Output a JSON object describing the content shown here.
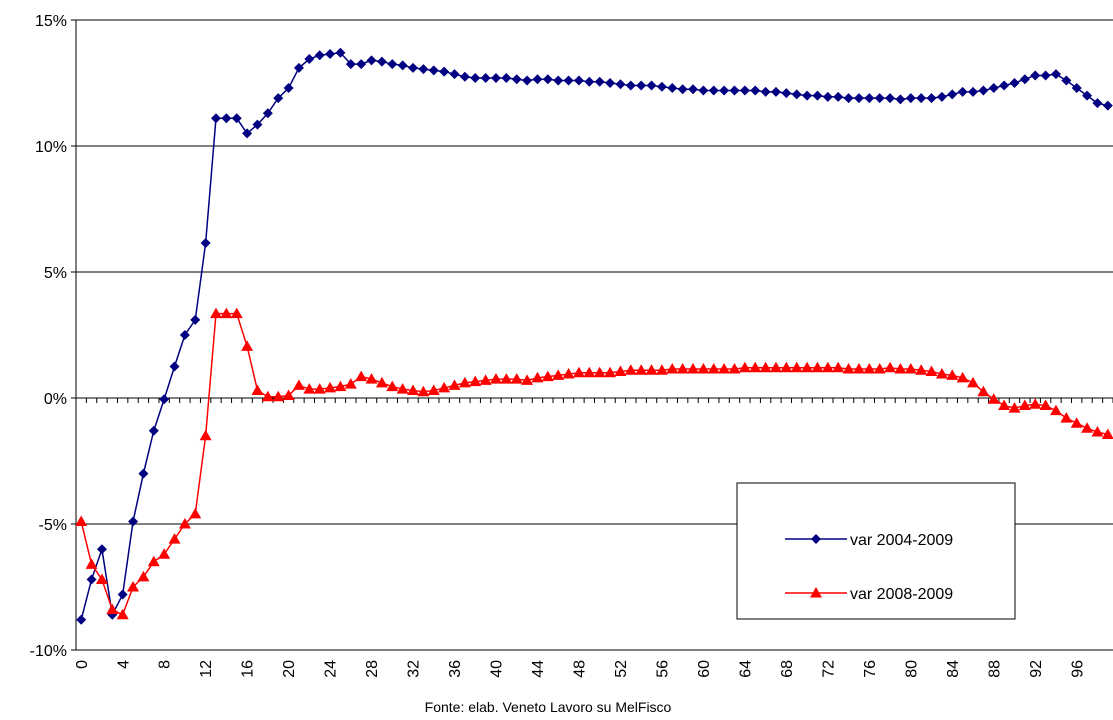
{
  "chart_data": {
    "type": "line",
    "source_note": "Fonte: elab. Veneto Lavoro su MelFisco",
    "ylim": [
      -10,
      15
    ],
    "y_ticks": [
      -10,
      -5,
      0,
      5,
      10,
      15
    ],
    "y_tick_labels": [
      "-10%",
      "-5%",
      "0%",
      "5%",
      "10%",
      "15%"
    ],
    "xlim": [
      0,
      99
    ],
    "x_ticks": [
      0,
      4,
      8,
      12,
      16,
      20,
      24,
      28,
      32,
      36,
      40,
      44,
      48,
      52,
      56,
      60,
      64,
      68,
      72,
      76,
      80,
      84,
      88,
      92,
      96
    ],
    "x_tick_labels": [
      "0",
      "4",
      "8",
      "12",
      "16",
      "20",
      "24",
      "28",
      "32",
      "36",
      "40",
      "44",
      "48",
      "52",
      "56",
      "60",
      "64",
      "68",
      "72",
      "76",
      "80",
      "84",
      "88",
      "92",
      "96"
    ],
    "grid": "horizontal",
    "legend_position": "lower-right",
    "x": [
      0,
      1,
      2,
      3,
      4,
      5,
      6,
      7,
      8,
      9,
      10,
      11,
      12,
      13,
      14,
      15,
      16,
      17,
      18,
      19,
      20,
      21,
      22,
      23,
      24,
      25,
      26,
      27,
      28,
      29,
      30,
      31,
      32,
      33,
      34,
      35,
      36,
      37,
      38,
      39,
      40,
      41,
      42,
      43,
      44,
      45,
      46,
      47,
      48,
      49,
      50,
      51,
      52,
      53,
      54,
      55,
      56,
      57,
      58,
      59,
      60,
      61,
      62,
      63,
      64,
      65,
      66,
      67,
      68,
      69,
      70,
      71,
      72,
      73,
      74,
      75,
      76,
      77,
      78,
      79,
      80,
      81,
      82,
      83,
      84,
      85,
      86,
      87,
      88,
      89,
      90,
      91,
      92,
      93,
      94,
      95,
      96,
      97,
      98,
      99
    ],
    "series": [
      {
        "name": "var 2004-2009",
        "color": "#000080",
        "marker": "diamond",
        "values": [
          -8.8,
          -7.2,
          -6.0,
          -8.6,
          -7.8,
          -4.9,
          -3.0,
          -1.3,
          -0.05,
          1.25,
          2.5,
          3.1,
          6.15,
          11.1,
          11.1,
          11.1,
          10.5,
          10.85,
          11.3,
          11.9,
          12.3,
          13.1,
          13.45,
          13.6,
          13.65,
          13.7,
          13.25,
          13.25,
          13.4,
          13.35,
          13.25,
          13.2,
          13.1,
          13.05,
          13.0,
          12.95,
          12.85,
          12.75,
          12.7,
          12.7,
          12.7,
          12.7,
          12.65,
          12.6,
          12.65,
          12.65,
          12.6,
          12.6,
          12.6,
          12.55,
          12.55,
          12.5,
          12.45,
          12.4,
          12.4,
          12.4,
          12.35,
          12.3,
          12.25,
          12.25,
          12.2,
          12.2,
          12.2,
          12.2,
          12.2,
          12.2,
          12.15,
          12.15,
          12.1,
          12.05,
          12.0,
          12.0,
          11.95,
          11.95,
          11.9,
          11.9,
          11.9,
          11.9,
          11.9,
          11.85,
          11.9,
          11.9,
          11.9,
          11.95,
          12.05,
          12.15,
          12.15,
          12.2,
          12.3,
          12.4,
          12.5,
          12.65,
          12.8,
          12.8,
          12.85,
          12.6,
          12.3,
          12.0,
          11.7,
          11.6
        ]
      },
      {
        "name": "var 2008-2009",
        "color": "#ff0000",
        "marker": "triangle",
        "values": [
          -4.9,
          -6.6,
          -7.2,
          -8.4,
          -8.6,
          -7.5,
          -7.1,
          -6.5,
          -6.2,
          -5.6,
          -5.0,
          -4.6,
          -1.5,
          3.35,
          3.35,
          3.35,
          2.05,
          0.3,
          0.05,
          0.05,
          0.1,
          0.5,
          0.35,
          0.35,
          0.4,
          0.45,
          0.55,
          0.85,
          0.75,
          0.6,
          0.45,
          0.35,
          0.3,
          0.25,
          0.3,
          0.4,
          0.5,
          0.6,
          0.65,
          0.7,
          0.75,
          0.75,
          0.75,
          0.7,
          0.8,
          0.85,
          0.9,
          0.95,
          1.0,
          1.0,
          1.0,
          1.0,
          1.05,
          1.1,
          1.1,
          1.1,
          1.1,
          1.15,
          1.15,
          1.15,
          1.15,
          1.15,
          1.15,
          1.15,
          1.2,
          1.2,
          1.2,
          1.2,
          1.2,
          1.2,
          1.2,
          1.2,
          1.2,
          1.2,
          1.15,
          1.15,
          1.15,
          1.15,
          1.2,
          1.15,
          1.15,
          1.1,
          1.05,
          0.95,
          0.9,
          0.8,
          0.6,
          0.25,
          -0.05,
          -0.3,
          -0.4,
          -0.3,
          -0.25,
          -0.3,
          -0.5,
          -0.8,
          -1.0,
          -1.2,
          -1.35,
          -1.45
        ]
      }
    ]
  }
}
